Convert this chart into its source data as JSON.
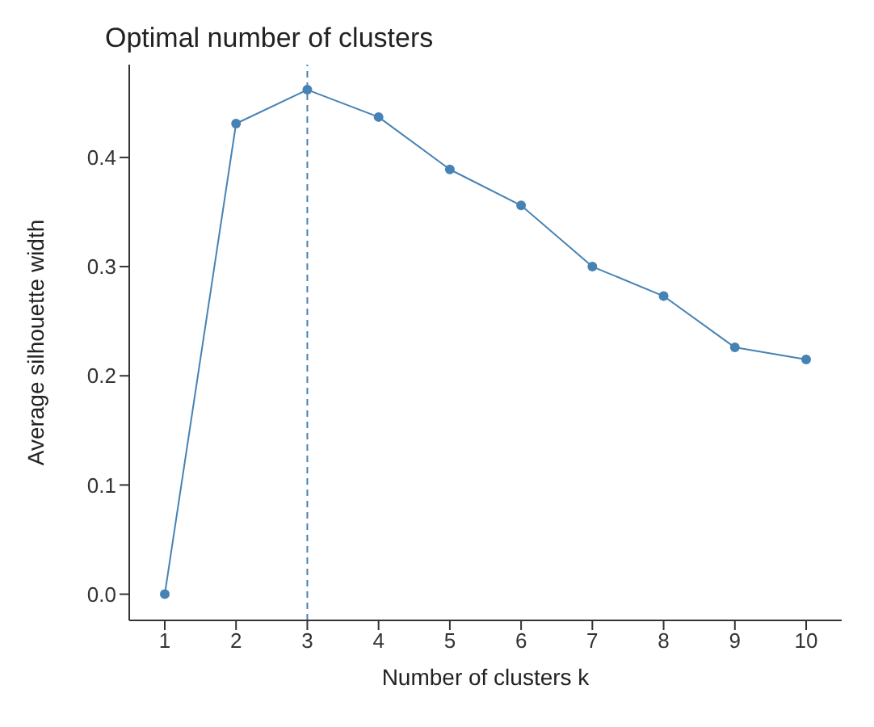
{
  "chart_data": {
    "type": "line",
    "title": "Optimal number of clusters",
    "xlabel": "Number of clusters k",
    "ylabel": "Average silhouette width",
    "categories": [
      "1",
      "2",
      "3",
      "4",
      "5",
      "6",
      "7",
      "8",
      "9",
      "10"
    ],
    "series": [
      {
        "color": "#4682b4",
        "values": [
          0.0,
          0.431,
          0.462,
          0.437,
          0.389,
          0.356,
          0.3,
          0.273,
          0.226,
          0.215
        ]
      }
    ],
    "ylim": [
      -0.024,
      0.485
    ],
    "yticks": [
      {
        "value": 0,
        "label": "0.0"
      },
      {
        "value": 0.1,
        "label": "0.1"
      },
      {
        "value": 0.2,
        "label": "0.2"
      },
      {
        "value": 0.3,
        "label": "0.3"
      },
      {
        "value": 0.4,
        "label": "0.4"
      }
    ],
    "ref_lines": [
      {
        "axis": "x",
        "value": "3",
        "color": "#4682b4",
        "line_style": "dashed"
      }
    ],
    "grid": false,
    "marker": "circle",
    "line_style": "solid"
  }
}
